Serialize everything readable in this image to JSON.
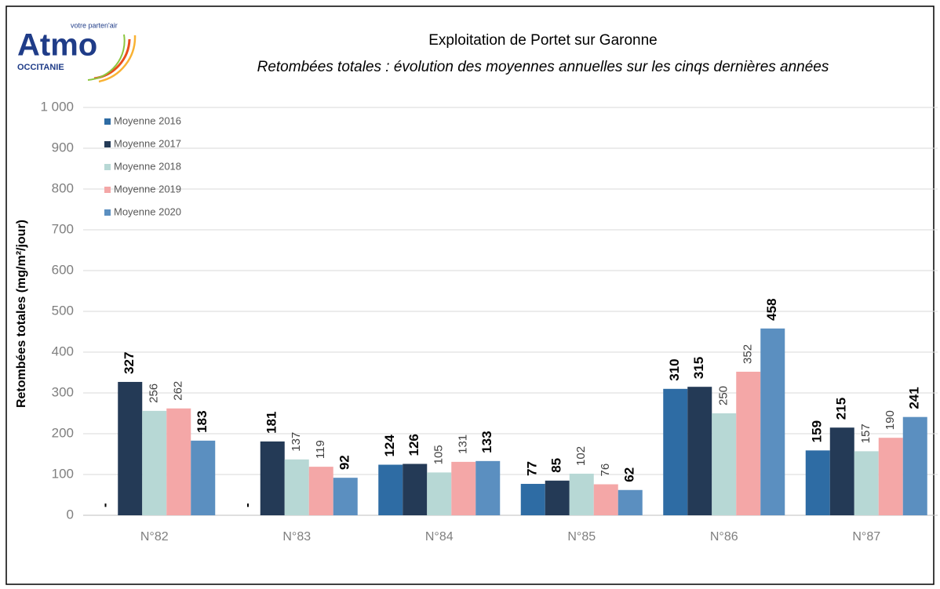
{
  "logo": {
    "name": "Atmo",
    "region": "OCCITANIE",
    "tagline": "votre parten'air"
  },
  "chart_data": {
    "type": "bar",
    "title": "Exploitation de Portet sur Garonne",
    "subtitle": "Retombées totales : évolution des moyennes annuelles sur les cinqs dernières années",
    "y_label": "Retombées totales (mg/m²/jour)",
    "categories": [
      "N°82",
      "N°83",
      "N°84",
      "N°85",
      "N°86",
      "N°87"
    ],
    "series": [
      {
        "name": "Moyenne 2016",
        "color": "#2e6ca4",
        "bold": true,
        "values": [
          null,
          null,
          124,
          77,
          310,
          159
        ],
        "value_labels": [
          "-",
          "-",
          "124",
          "77",
          "310",
          "159"
        ]
      },
      {
        "name": "Moyenne 2017",
        "color": "#243a56",
        "bold": true,
        "values": [
          327,
          181,
          126,
          85,
          315,
          215
        ]
      },
      {
        "name": "Moyenne 2018",
        "color": "#b7d8d5",
        "bold": false,
        "values": [
          256,
          137,
          105,
          102,
          250,
          157
        ]
      },
      {
        "name": "Moyenne 2019",
        "color": "#f4a7a7",
        "bold": false,
        "values": [
          262,
          119,
          131,
          76,
          352,
          190
        ]
      },
      {
        "name": "Moyenne 2020",
        "color": "#5b8fc0",
        "bold": true,
        "values": [
          183,
          92,
          133,
          62,
          458,
          241
        ]
      }
    ],
    "ylim": [
      0,
      1000
    ],
    "yticks": [
      0,
      100,
      200,
      300,
      400,
      500,
      600,
      700,
      800,
      900,
      {
        "value": 1000,
        "label": "1 000"
      }
    ],
    "grid": true,
    "legend": "top-left"
  }
}
